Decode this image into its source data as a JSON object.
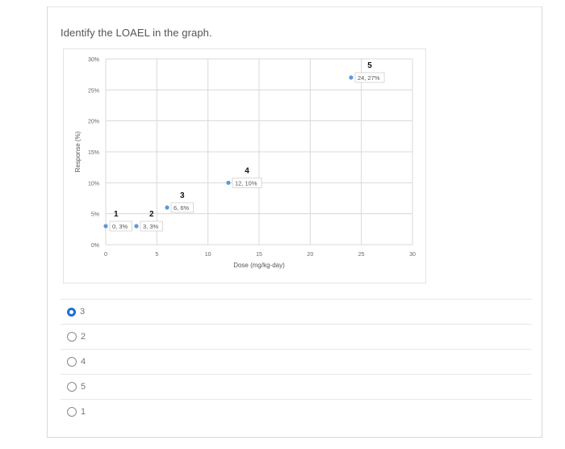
{
  "question": {
    "text": "Identify the LOAEL in the graph."
  },
  "chart_data": {
    "type": "scatter",
    "title": "",
    "xlabel": "Dose (mg/kg-day)",
    "ylabel": "Response (%)",
    "xlim": [
      0,
      30
    ],
    "ylim": [
      0,
      30
    ],
    "x_ticks": [
      "0",
      "5",
      "10",
      "15",
      "20",
      "25",
      "30"
    ],
    "y_ticks": [
      "0%",
      "5%",
      "10%",
      "15%",
      "20%",
      "25%",
      "30%"
    ],
    "grid": true,
    "legend": null,
    "point_color": "#5b9bd5",
    "points": [
      {
        "id": "1",
        "x": 0,
        "y": 3,
        "label": "0, 3%"
      },
      {
        "id": "2",
        "x": 3,
        "y": 3,
        "label": "3, 3%"
      },
      {
        "id": "3",
        "x": 6,
        "y": 6,
        "label": "6, 6%"
      },
      {
        "id": "4",
        "x": 12,
        "y": 10,
        "label": "12, 10%"
      },
      {
        "id": "5",
        "x": 24,
        "y": 27,
        "label": "24, 27%"
      }
    ]
  },
  "options": [
    {
      "label": "3",
      "selected": true
    },
    {
      "label": "2",
      "selected": false
    },
    {
      "label": "4",
      "selected": false
    },
    {
      "label": "5",
      "selected": false
    },
    {
      "label": "1",
      "selected": false
    }
  ],
  "colors": {
    "accent": "#1e6fd6",
    "gridline": "#d9d9d9",
    "border": "#d8d8d8"
  }
}
